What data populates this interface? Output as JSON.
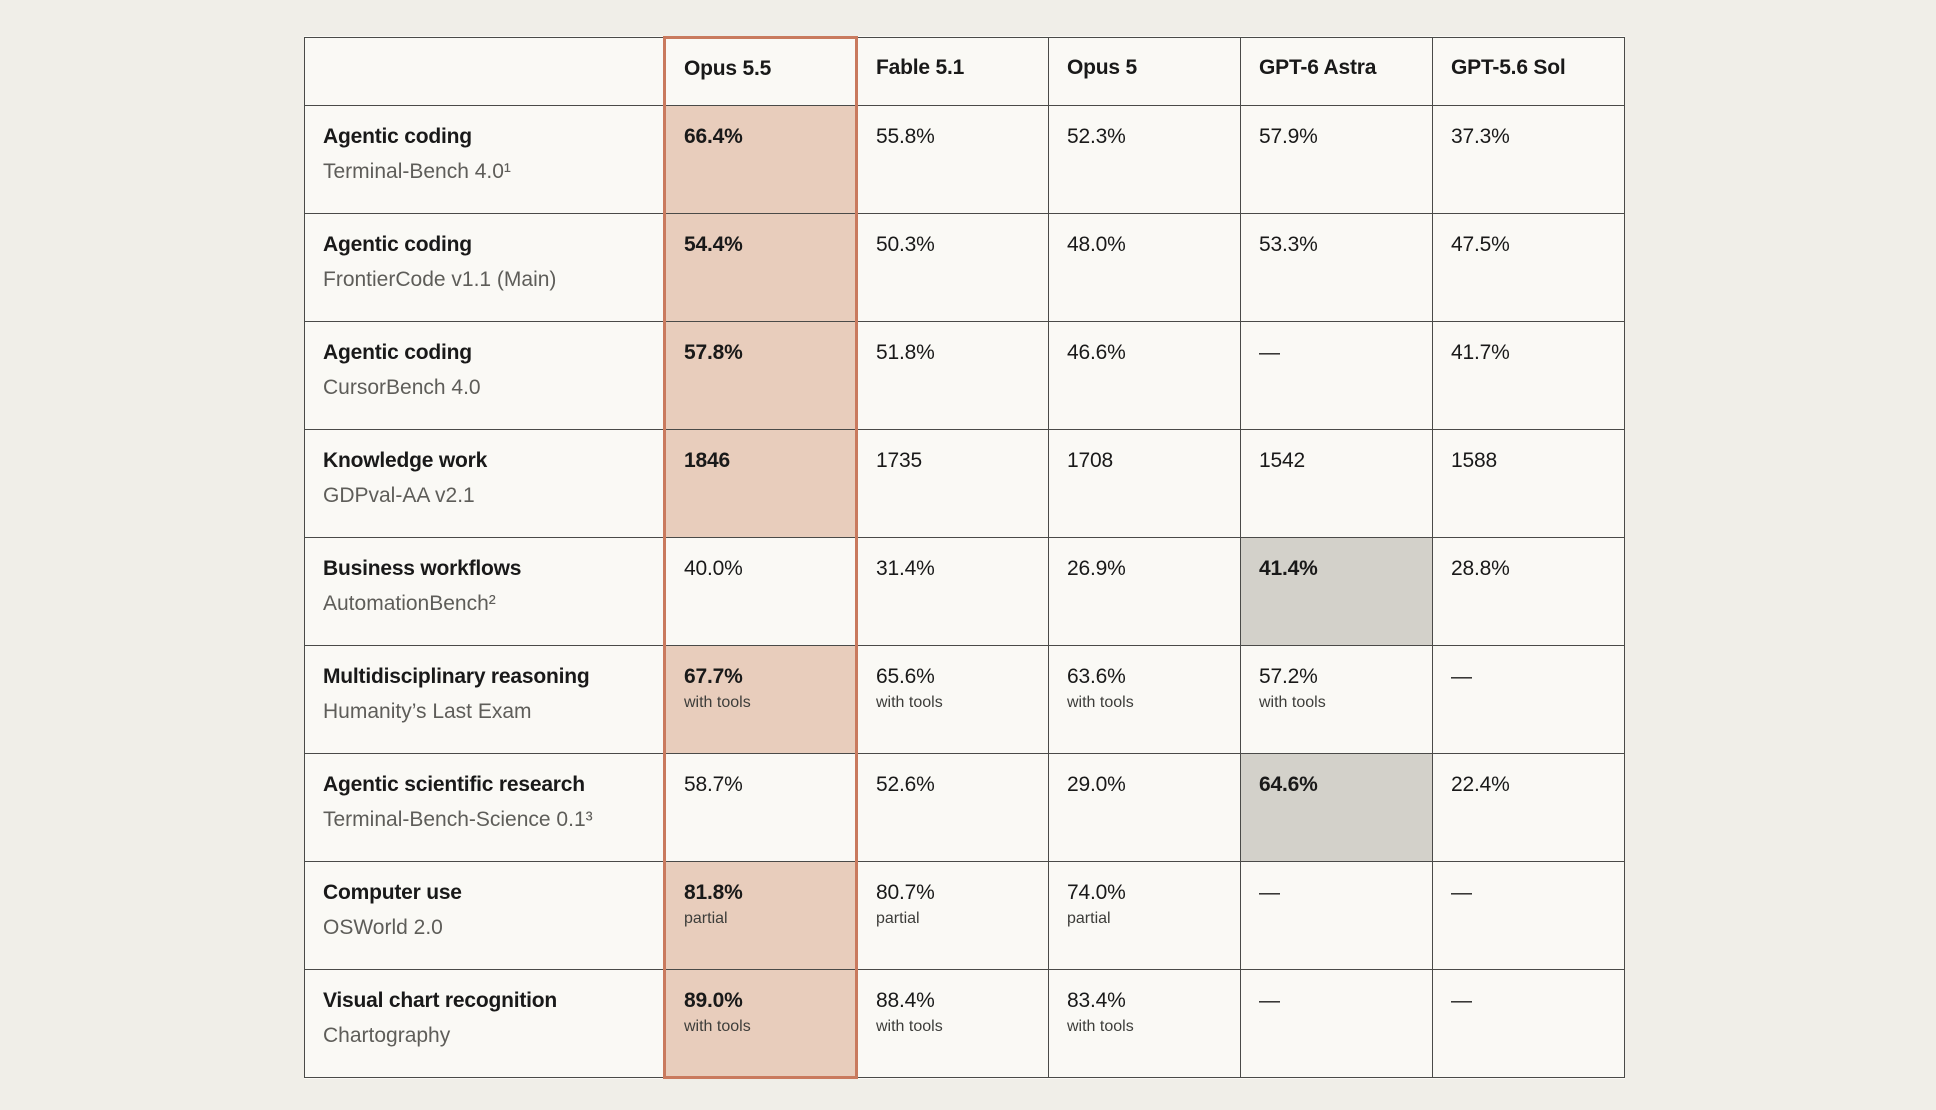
{
  "colors": {
    "background": "#f0eee8",
    "table_bg": "#faf9f5",
    "highlight_accent": "#e8cdbc",
    "highlight_border": "#c97a5e",
    "highlight_gray": "#d3d1ca"
  },
  "header": {
    "corner": "",
    "models": [
      "Opus 5.5",
      "Fable 5.1",
      "Opus 5",
      "GPT-6 Astra",
      "GPT-5.6 Sol"
    ]
  },
  "rows": [
    {
      "title": "Agentic coding",
      "subtitle": "Terminal-Bench 4.0¹",
      "cells": [
        {
          "value": "66.4%",
          "note": "",
          "best": true,
          "fill": "accent"
        },
        {
          "value": "55.8%",
          "note": "",
          "best": false,
          "fill": ""
        },
        {
          "value": "52.3%",
          "note": "",
          "best": false,
          "fill": ""
        },
        {
          "value": "57.9%",
          "note": "",
          "best": false,
          "fill": ""
        },
        {
          "value": "37.3%",
          "note": "",
          "best": false,
          "fill": ""
        }
      ]
    },
    {
      "title": "Agentic coding",
      "subtitle": "FrontierCode v1.1 (Main)",
      "cells": [
        {
          "value": "54.4%",
          "note": "",
          "best": true,
          "fill": "accent"
        },
        {
          "value": "50.3%",
          "note": "",
          "best": false,
          "fill": ""
        },
        {
          "value": "48.0%",
          "note": "",
          "best": false,
          "fill": ""
        },
        {
          "value": "53.3%",
          "note": "",
          "best": false,
          "fill": ""
        },
        {
          "value": "47.5%",
          "note": "",
          "best": false,
          "fill": ""
        }
      ]
    },
    {
      "title": "Agentic coding",
      "subtitle": "CursorBench 4.0",
      "cells": [
        {
          "value": "57.8%",
          "note": "",
          "best": true,
          "fill": "accent"
        },
        {
          "value": "51.8%",
          "note": "",
          "best": false,
          "fill": ""
        },
        {
          "value": "46.6%",
          "note": "",
          "best": false,
          "fill": ""
        },
        {
          "value": "—",
          "note": "",
          "best": false,
          "fill": ""
        },
        {
          "value": "41.7%",
          "note": "",
          "best": false,
          "fill": ""
        }
      ]
    },
    {
      "title": "Knowledge work",
      "subtitle": "GDPval-AA v2.1",
      "cells": [
        {
          "value": "1846",
          "note": "",
          "best": true,
          "fill": "accent"
        },
        {
          "value": "1735",
          "note": "",
          "best": false,
          "fill": ""
        },
        {
          "value": "1708",
          "note": "",
          "best": false,
          "fill": ""
        },
        {
          "value": "1542",
          "note": "",
          "best": false,
          "fill": ""
        },
        {
          "value": "1588",
          "note": "",
          "best": false,
          "fill": ""
        }
      ]
    },
    {
      "title": "Business workflows",
      "subtitle": "AutomationBench²",
      "cells": [
        {
          "value": "40.0%",
          "note": "",
          "best": false,
          "fill": ""
        },
        {
          "value": "31.4%",
          "note": "",
          "best": false,
          "fill": ""
        },
        {
          "value": "26.9%",
          "note": "",
          "best": false,
          "fill": ""
        },
        {
          "value": "41.4%",
          "note": "",
          "best": true,
          "fill": "gray"
        },
        {
          "value": "28.8%",
          "note": "",
          "best": false,
          "fill": ""
        }
      ]
    },
    {
      "title": "Multidisciplinary reasoning",
      "subtitle": "Humanity’s Last Exam",
      "cells": [
        {
          "value": "67.7%",
          "note": "with tools",
          "best": true,
          "fill": "accent"
        },
        {
          "value": "65.6%",
          "note": "with tools",
          "best": false,
          "fill": ""
        },
        {
          "value": "63.6%",
          "note": "with tools",
          "best": false,
          "fill": ""
        },
        {
          "value": "57.2%",
          "note": "with tools",
          "best": false,
          "fill": ""
        },
        {
          "value": "—",
          "note": "",
          "best": false,
          "fill": ""
        }
      ]
    },
    {
      "title": "Agentic scientific research",
      "subtitle": "Terminal-Bench-Science 0.1³",
      "cells": [
        {
          "value": "58.7%",
          "note": "",
          "best": false,
          "fill": ""
        },
        {
          "value": "52.6%",
          "note": "",
          "best": false,
          "fill": ""
        },
        {
          "value": "29.0%",
          "note": "",
          "best": false,
          "fill": ""
        },
        {
          "value": "64.6%",
          "note": "",
          "best": true,
          "fill": "gray"
        },
        {
          "value": "22.4%",
          "note": "",
          "best": false,
          "fill": ""
        }
      ]
    },
    {
      "title": "Computer use",
      "subtitle": "OSWorld 2.0",
      "cells": [
        {
          "value": "81.8%",
          "note": "partial",
          "best": true,
          "fill": "accent"
        },
        {
          "value": "80.7%",
          "note": "partial",
          "best": false,
          "fill": ""
        },
        {
          "value": "74.0%",
          "note": "partial",
          "best": false,
          "fill": ""
        },
        {
          "value": "—",
          "note": "",
          "best": false,
          "fill": ""
        },
        {
          "value": "—",
          "note": "",
          "best": false,
          "fill": ""
        }
      ]
    },
    {
      "title": "Visual chart recognition",
      "subtitle": "Chartography",
      "cells": [
        {
          "value": "89.0%",
          "note": "with tools",
          "best": true,
          "fill": "accent"
        },
        {
          "value": "88.4%",
          "note": "with tools",
          "best": false,
          "fill": ""
        },
        {
          "value": "83.4%",
          "note": "with tools",
          "best": false,
          "fill": ""
        },
        {
          "value": "—",
          "note": "",
          "best": false,
          "fill": ""
        },
        {
          "value": "—",
          "note": "",
          "best": false,
          "fill": ""
        }
      ]
    }
  ]
}
